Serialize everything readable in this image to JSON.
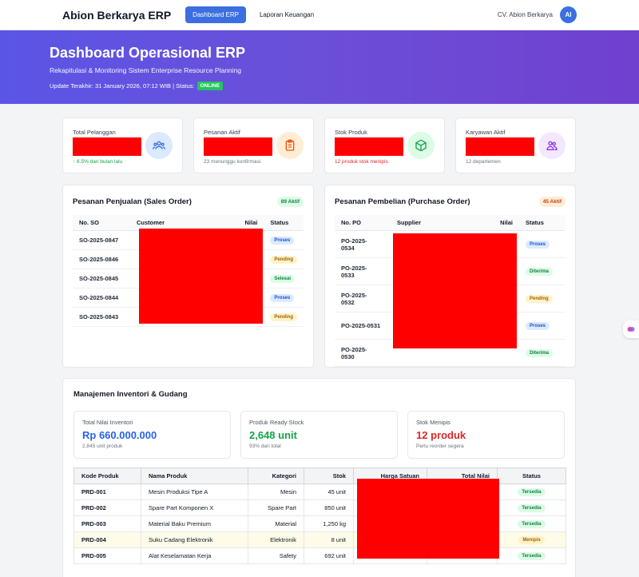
{
  "nav": {
    "brand": "Abion Berkarya ERP",
    "links": [
      "Dashboard ERP",
      "Laporan Keuangan"
    ],
    "company": "CV. Abion Berkarya",
    "avatar": "AI"
  },
  "hero": {
    "title": "Dashboard Operasional ERP",
    "subtitle": "Rekapitulasi & Monitoring Sistem Enterprise Resource Planning",
    "update": "Update Terakhir: 31 January 2026, 07:12 WIB | Status:",
    "status": "ONLINE"
  },
  "stats": [
    {
      "label": "Total Pelanggan",
      "note": "↑ 8.5% dari bulan lalu",
      "icon": "users-icon",
      "icon_bg": "#dbeafe",
      "icon_color": "#3b6fe0"
    },
    {
      "label": "Pesanan Aktif",
      "note": "23 menunggu konfirmasi",
      "icon": "clipboard-icon",
      "icon_bg": "#ffedd5",
      "icon_color": "#ea580c"
    },
    {
      "label": "Stok Produk",
      "note": "12 produk stok menipis",
      "icon": "box-icon",
      "icon_bg": "#dcfce7",
      "icon_color": "#16a34a"
    },
    {
      "label": "Karyawan Aktif",
      "note": "12 departemen",
      "icon": "people-icon",
      "icon_bg": "#f3e8ff",
      "icon_color": "#9333ea"
    }
  ],
  "sales": {
    "title": "Pesanan Penjualan (Sales Order)",
    "badge": "89 Aktif",
    "headers": [
      "No. SO",
      "Customer",
      "Nilai",
      "Status"
    ],
    "rows": [
      {
        "no": "SO-2025-0847",
        "status": "Proses"
      },
      {
        "no": "SO-2025-0846",
        "status": "Pending"
      },
      {
        "no": "SO-2025-0845",
        "status": "Selesai"
      },
      {
        "no": "SO-2025-0844",
        "status": "Proses"
      },
      {
        "no": "SO-2025-0843",
        "status": "Pending"
      }
    ]
  },
  "purchase": {
    "title": "Pesanan Pembelian (Purchase Order)",
    "badge": "45 Aktif",
    "headers": [
      "No. PO",
      "Supplier",
      "Nilai",
      "Status"
    ],
    "rows": [
      {
        "no1": "PO-2025-",
        "no2": "0534",
        "status": "Proses"
      },
      {
        "no1": "PO-2025-",
        "no2": "0533",
        "status": "Diterima"
      },
      {
        "no1": "PO-2025-",
        "no2": "0532",
        "status": "Pending"
      },
      {
        "no1": "PO-2025-0531",
        "no2": "",
        "status": "Proses"
      },
      {
        "no1": "PO-2025-",
        "no2": "0530",
        "status": "Diterima"
      }
    ]
  },
  "inventory": {
    "title": "Manajemen Inventori & Gudang",
    "cards": [
      {
        "label": "Total Nilai Inventori",
        "value": "Rp 660.000.000",
        "small": "2,845 unit produk",
        "color": "#2563eb"
      },
      {
        "label": "Produk Ready Stock",
        "value": "2,648 unit",
        "small": "93% dari total",
        "color": "#16a34a"
      },
      {
        "label": "Stok Menipis",
        "value": "12 produk",
        "small": "Perlu reorder segera",
        "color": "#dc2626"
      }
    ],
    "headers": [
      "Kode Produk",
      "Nama Produk",
      "Kategori",
      "Stok",
      "Harga Satuan",
      "Total Nilai",
      "Status"
    ],
    "rows": [
      {
        "kode": "PRD-001",
        "nama": "Mesin Produksi Tipe A",
        "kategori": "Mesin",
        "stok": "45 unit",
        "status": "Tersedia"
      },
      {
        "kode": "PRD-002",
        "nama": "Spare Part Komponen X",
        "kategori": "Spare Part",
        "stok": "850 unit",
        "status": "Tersedia"
      },
      {
        "kode": "PRD-003",
        "nama": "Material Baku Premium",
        "kategori": "Material",
        "stok": "1,250 kg",
        "status": "Tersedia"
      },
      {
        "kode": "PRD-004",
        "nama": "Suku Cadang Elektronik",
        "kategori": "Elektronik",
        "stok": "8 unit",
        "status": "Menipis"
      },
      {
        "kode": "PRD-005",
        "nama": "Alat Keselamatan Kerja",
        "kategori": "Safety",
        "stok": "692 unit",
        "status": "Tersedia"
      }
    ]
  }
}
